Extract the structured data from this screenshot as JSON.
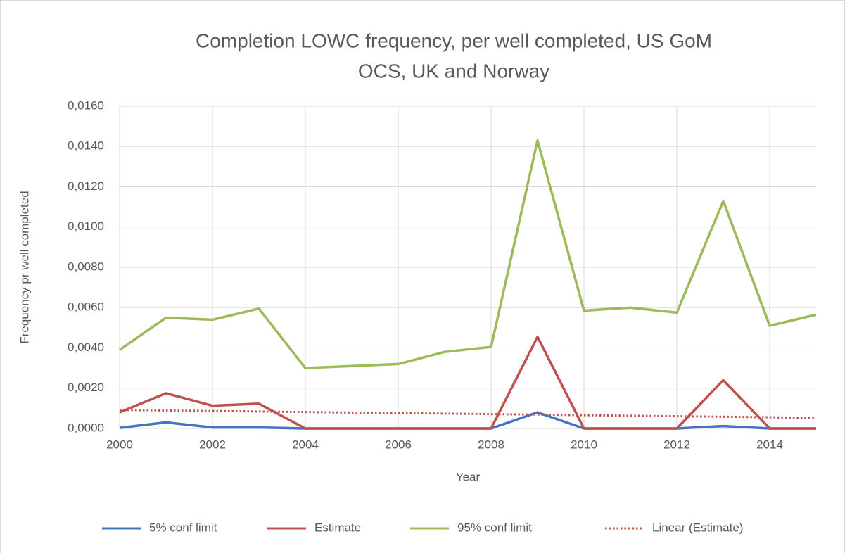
{
  "chart_data": {
    "type": "line",
    "title": [
      "Completion LOWC frequency, per well completed, US GoM",
      "OCS, UK and Norway"
    ],
    "xlabel": "Year",
    "ylabel": "Frequency pr well completed",
    "x": [
      2000,
      2001,
      2002,
      2003,
      2004,
      2005,
      2006,
      2007,
      2008,
      2009,
      2010,
      2011,
      2012,
      2013,
      2014,
      2015
    ],
    "series": [
      {
        "name": "5% conf limit",
        "color": "#4472c4",
        "style": "solid",
        "values": [
          3e-05,
          0.0003,
          5e-05,
          5e-05,
          0,
          0,
          0,
          0,
          0,
          0.0008,
          0,
          0,
          0,
          0.00012,
          0,
          0
        ]
      },
      {
        "name": "Estimate",
        "color": "#c0504d",
        "style": "solid",
        "values": [
          0.0008,
          0.00175,
          0.00113,
          0.00123,
          0,
          0,
          0,
          0,
          0,
          0.00455,
          0,
          0,
          0,
          0.0024,
          0,
          0
        ]
      },
      {
        "name": "95% conf limit",
        "color": "#9bbb59",
        "style": "solid",
        "values": [
          0.0039,
          0.0055,
          0.0054,
          0.00595,
          0.003,
          0.0031,
          0.0032,
          0.0038,
          0.00405,
          0.0143,
          0.00585,
          0.006,
          0.00575,
          0.0113,
          0.0051,
          0.00565
        ]
      },
      {
        "name": "Linear (Estimate)",
        "color": "#c0504d",
        "style": "dotted",
        "values": [
          0.00092,
          0.000894,
          0.000868,
          0.000842,
          0.000816,
          0.00079,
          0.000764,
          0.000738,
          0.000712,
          0.000686,
          0.00066,
          0.000634,
          0.000608,
          0.000582,
          0.000556,
          0.00053
        ]
      }
    ],
    "xlim": [
      2000,
      2015
    ],
    "xticks": [
      2000,
      2002,
      2004,
      2006,
      2008,
      2010,
      2012,
      2014
    ],
    "ylim": [
      0,
      0.016
    ],
    "yticks": [
      {
        "value": 0,
        "label": "0,0000"
      },
      {
        "value": 0.002,
        "label": "0,0020"
      },
      {
        "value": 0.004,
        "label": "0,0040"
      },
      {
        "value": 0.006,
        "label": "0,0060"
      },
      {
        "value": 0.008,
        "label": "0,0080"
      },
      {
        "value": 0.01,
        "label": "0,0100"
      },
      {
        "value": 0.012,
        "label": "0,0120"
      },
      {
        "value": 0.014,
        "label": "0,0140"
      },
      {
        "value": 0.016,
        "label": "0,0160"
      }
    ],
    "grid": true,
    "legend": "bottom"
  }
}
